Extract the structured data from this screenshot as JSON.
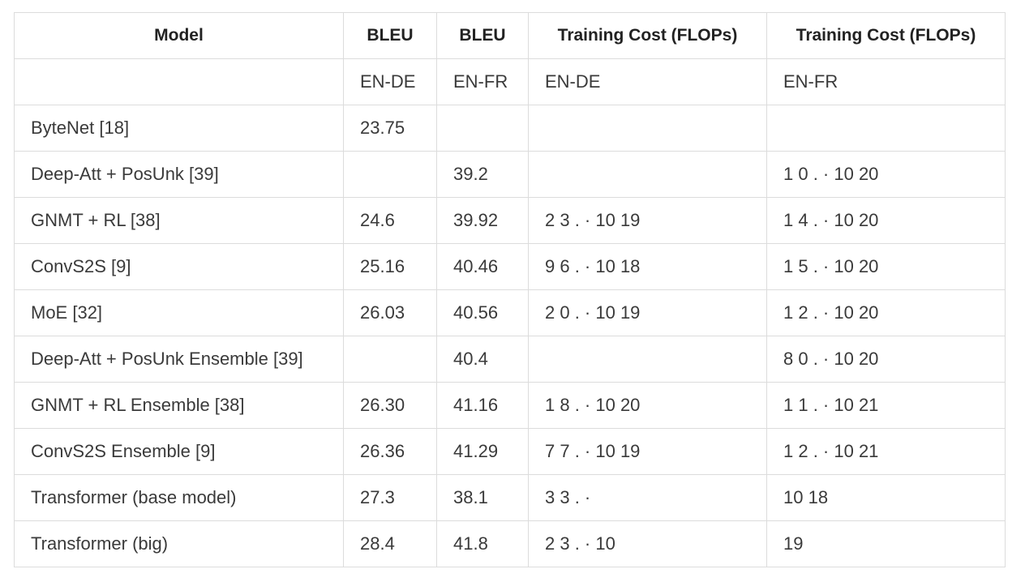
{
  "table": {
    "headers": [
      "Model",
      "BLEU",
      "BLEU",
      "Training Cost (FLOPs)",
      "Training Cost (FLOPs)"
    ],
    "rows": [
      [
        "",
        "EN-DE",
        "EN-FR",
        "EN-DE",
        "EN-FR"
      ],
      [
        "ByteNet [18]",
        "23.75",
        "",
        "",
        ""
      ],
      [
        "Deep-Att + PosUnk [39]",
        "",
        "39.2",
        "",
        "1 0 . · 10 20"
      ],
      [
        "GNMT + RL [38]",
        "24.6",
        "39.92",
        "2 3 . · 10 19",
        "1 4 . · 10 20"
      ],
      [
        "ConvS2S [9]",
        "25.16",
        "40.46",
        "9 6 . · 10 18",
        "1 5 . · 10 20"
      ],
      [
        "MoE [32]",
        "26.03",
        "40.56",
        "2 0 . · 10 19",
        "1 2 . · 10 20"
      ],
      [
        "Deep-Att + PosUnk Ensemble [39]",
        "",
        "40.4",
        "",
        "8 0 . · 10 20"
      ],
      [
        "GNMT + RL Ensemble [38]",
        "26.30",
        "41.16",
        "1 8 . · 10 20",
        "1 1 . · 10 21"
      ],
      [
        "ConvS2S Ensemble [9]",
        "26.36",
        "41.29",
        "7 7 . · 10 19",
        "1 2 . · 10 21"
      ],
      [
        "Transformer (base model)",
        "27.3",
        "38.1",
        "3 3 . ·",
        "10 18"
      ],
      [
        "Transformer (big)",
        "28.4",
        "41.8",
        "2 3 . · 10",
        "19"
      ]
    ]
  }
}
